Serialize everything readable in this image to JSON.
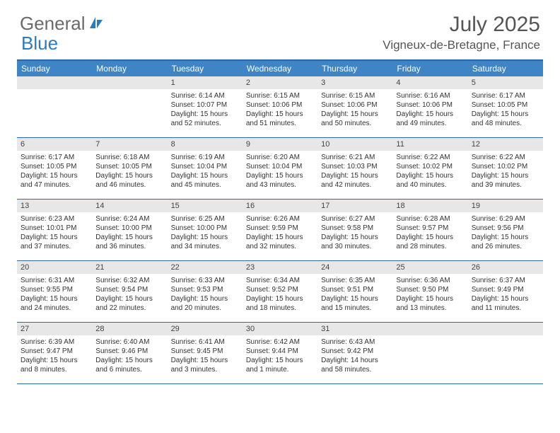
{
  "logo": {
    "text1": "General",
    "text2": "Blue"
  },
  "title": "July 2025",
  "location": "Vigneux-de-Bretagne, France",
  "colors": {
    "header_bar": "#3f84c4",
    "border": "#2b6aa8",
    "daynum_bg": "#e7e7e7",
    "text_muted": "#555555"
  },
  "weekdays": [
    "Sunday",
    "Monday",
    "Tuesday",
    "Wednesday",
    "Thursday",
    "Friday",
    "Saturday"
  ],
  "weeks": [
    [
      null,
      null,
      {
        "n": "1",
        "sr": "6:14 AM",
        "ss": "10:07 PM",
        "dl": "15 hours and 52 minutes."
      },
      {
        "n": "2",
        "sr": "6:15 AM",
        "ss": "10:06 PM",
        "dl": "15 hours and 51 minutes."
      },
      {
        "n": "3",
        "sr": "6:15 AM",
        "ss": "10:06 PM",
        "dl": "15 hours and 50 minutes."
      },
      {
        "n": "4",
        "sr": "6:16 AM",
        "ss": "10:06 PM",
        "dl": "15 hours and 49 minutes."
      },
      {
        "n": "5",
        "sr": "6:17 AM",
        "ss": "10:05 PM",
        "dl": "15 hours and 48 minutes."
      }
    ],
    [
      {
        "n": "6",
        "sr": "6:17 AM",
        "ss": "10:05 PM",
        "dl": "15 hours and 47 minutes."
      },
      {
        "n": "7",
        "sr": "6:18 AM",
        "ss": "10:05 PM",
        "dl": "15 hours and 46 minutes."
      },
      {
        "n": "8",
        "sr": "6:19 AM",
        "ss": "10:04 PM",
        "dl": "15 hours and 45 minutes."
      },
      {
        "n": "9",
        "sr": "6:20 AM",
        "ss": "10:04 PM",
        "dl": "15 hours and 43 minutes."
      },
      {
        "n": "10",
        "sr": "6:21 AM",
        "ss": "10:03 PM",
        "dl": "15 hours and 42 minutes."
      },
      {
        "n": "11",
        "sr": "6:22 AM",
        "ss": "10:02 PM",
        "dl": "15 hours and 40 minutes."
      },
      {
        "n": "12",
        "sr": "6:22 AM",
        "ss": "10:02 PM",
        "dl": "15 hours and 39 minutes."
      }
    ],
    [
      {
        "n": "13",
        "sr": "6:23 AM",
        "ss": "10:01 PM",
        "dl": "15 hours and 37 minutes."
      },
      {
        "n": "14",
        "sr": "6:24 AM",
        "ss": "10:00 PM",
        "dl": "15 hours and 36 minutes."
      },
      {
        "n": "15",
        "sr": "6:25 AM",
        "ss": "10:00 PM",
        "dl": "15 hours and 34 minutes."
      },
      {
        "n": "16",
        "sr": "6:26 AM",
        "ss": "9:59 PM",
        "dl": "15 hours and 32 minutes."
      },
      {
        "n": "17",
        "sr": "6:27 AM",
        "ss": "9:58 PM",
        "dl": "15 hours and 30 minutes."
      },
      {
        "n": "18",
        "sr": "6:28 AM",
        "ss": "9:57 PM",
        "dl": "15 hours and 28 minutes."
      },
      {
        "n": "19",
        "sr": "6:29 AM",
        "ss": "9:56 PM",
        "dl": "15 hours and 26 minutes."
      }
    ],
    [
      {
        "n": "20",
        "sr": "6:31 AM",
        "ss": "9:55 PM",
        "dl": "15 hours and 24 minutes."
      },
      {
        "n": "21",
        "sr": "6:32 AM",
        "ss": "9:54 PM",
        "dl": "15 hours and 22 minutes."
      },
      {
        "n": "22",
        "sr": "6:33 AM",
        "ss": "9:53 PM",
        "dl": "15 hours and 20 minutes."
      },
      {
        "n": "23",
        "sr": "6:34 AM",
        "ss": "9:52 PM",
        "dl": "15 hours and 18 minutes."
      },
      {
        "n": "24",
        "sr": "6:35 AM",
        "ss": "9:51 PM",
        "dl": "15 hours and 15 minutes."
      },
      {
        "n": "25",
        "sr": "6:36 AM",
        "ss": "9:50 PM",
        "dl": "15 hours and 13 minutes."
      },
      {
        "n": "26",
        "sr": "6:37 AM",
        "ss": "9:49 PM",
        "dl": "15 hours and 11 minutes."
      }
    ],
    [
      {
        "n": "27",
        "sr": "6:39 AM",
        "ss": "9:47 PM",
        "dl": "15 hours and 8 minutes."
      },
      {
        "n": "28",
        "sr": "6:40 AM",
        "ss": "9:46 PM",
        "dl": "15 hours and 6 minutes."
      },
      {
        "n": "29",
        "sr": "6:41 AM",
        "ss": "9:45 PM",
        "dl": "15 hours and 3 minutes."
      },
      {
        "n": "30",
        "sr": "6:42 AM",
        "ss": "9:44 PM",
        "dl": "15 hours and 1 minute."
      },
      {
        "n": "31",
        "sr": "6:43 AM",
        "ss": "9:42 PM",
        "dl": "14 hours and 58 minutes."
      },
      null,
      null
    ]
  ],
  "labels": {
    "sunrise": "Sunrise:",
    "sunset": "Sunset:",
    "daylight": "Daylight:"
  }
}
